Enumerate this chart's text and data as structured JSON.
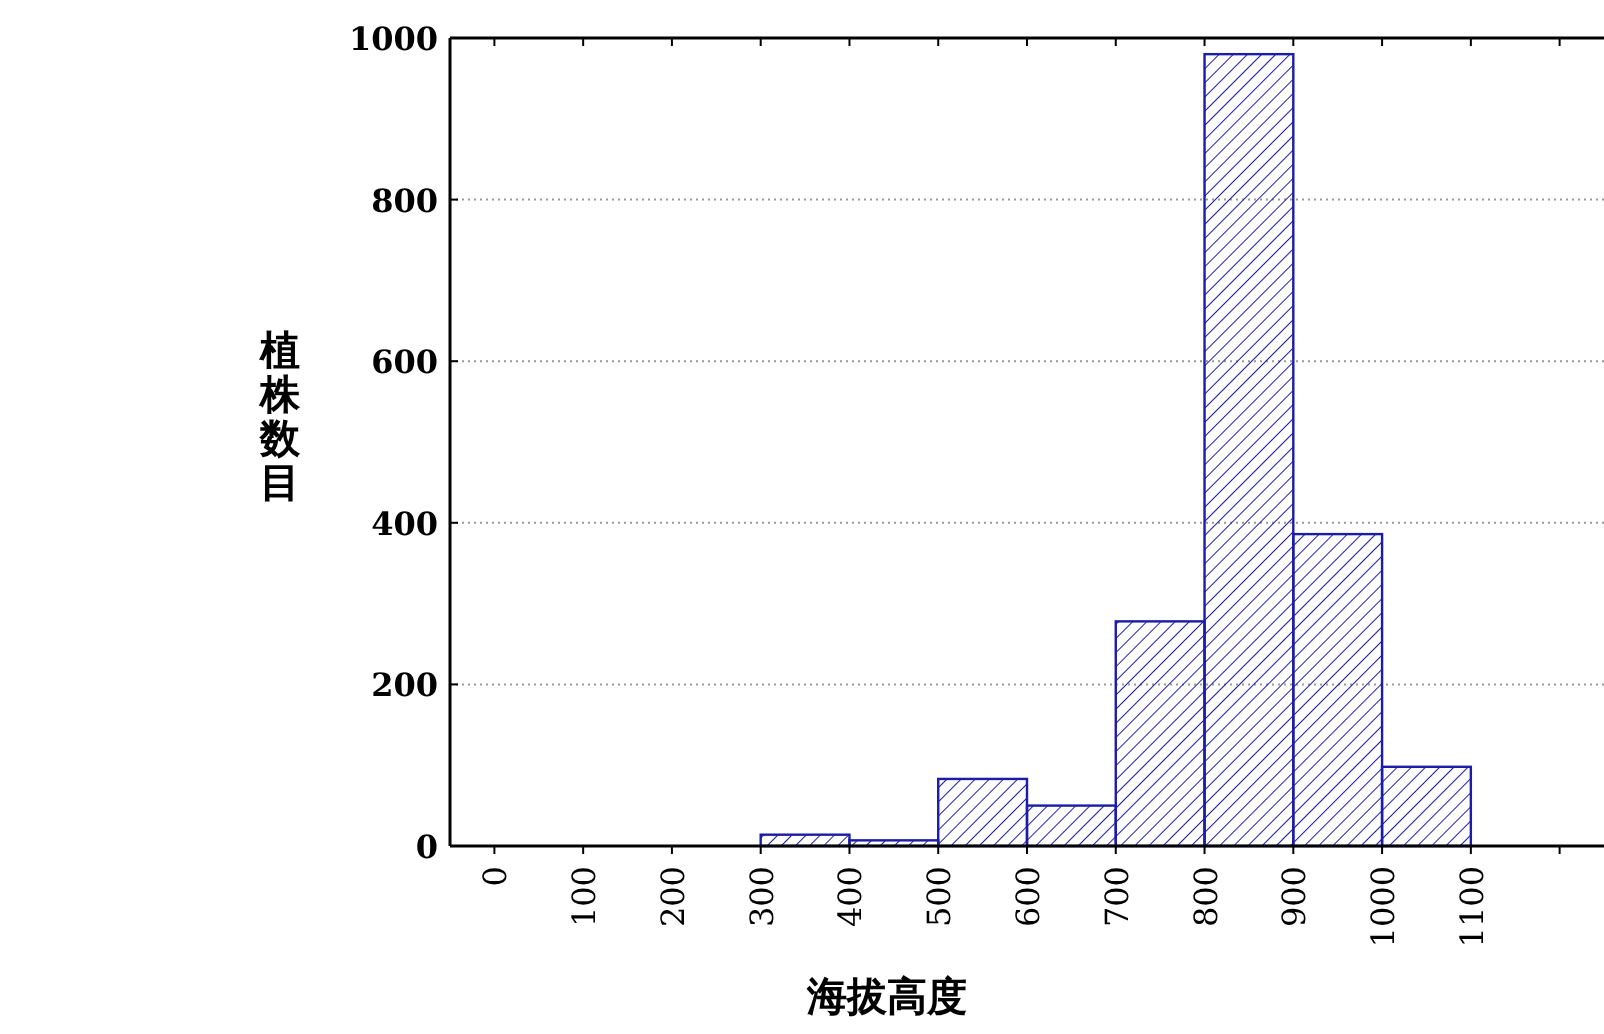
{
  "chart_data": {
    "type": "histogram",
    "xlabel": "海拔高度",
    "ylabel": "植株数目",
    "bins": [
      0,
      100,
      200,
      300,
      400,
      500,
      600,
      700,
      800,
      900,
      1000,
      1100
    ],
    "values": [
      0,
      0,
      0,
      14,
      7,
      83,
      50,
      278,
      980,
      386,
      98
    ],
    "color": "#1c1ca8",
    "xlim": [
      -50,
      1250
    ],
    "ylim": [
      0,
      1000
    ],
    "xticks": [
      0,
      100,
      200,
      300,
      400,
      500,
      600,
      700,
      800,
      900,
      1000,
      1100,
      {
        "value": 1200,
        "label": null
      }
    ],
    "yticks": [
      0,
      200,
      400,
      600,
      800,
      1000
    ],
    "grid": "y"
  }
}
